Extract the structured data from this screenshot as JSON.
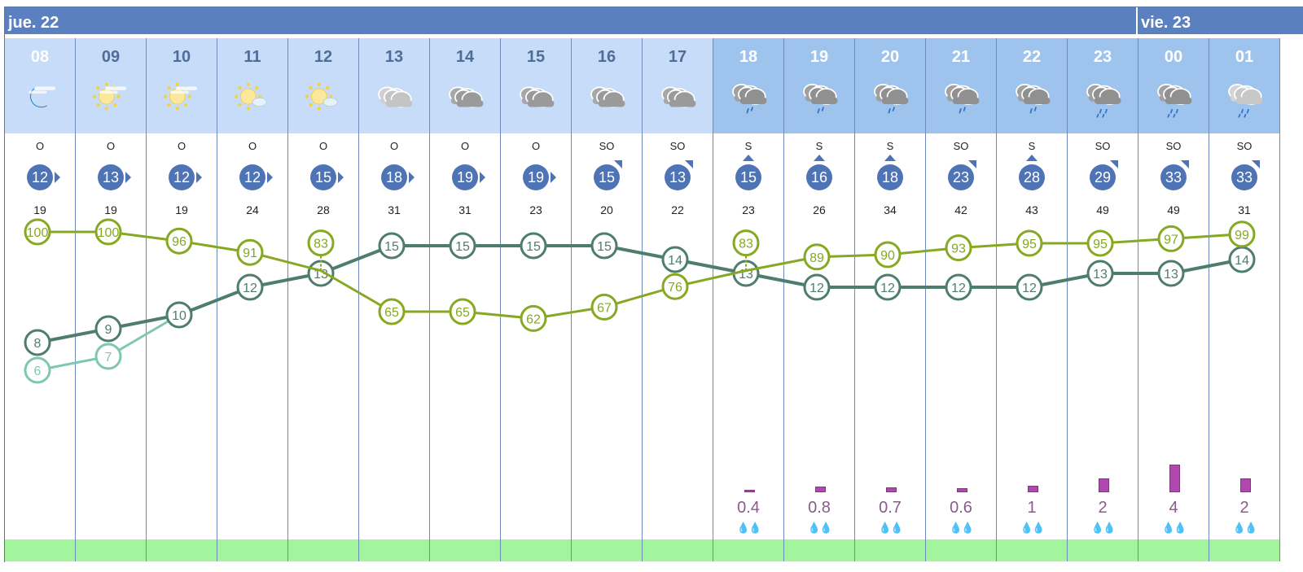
{
  "days": [
    {
      "label": "jue. 22"
    },
    {
      "label": "vie. 23"
    }
  ],
  "colors": {
    "day_bar": "#5b80bf",
    "hour_day": "#c6dcf8",
    "hour_evening": "#9ec3ec",
    "wind_circle": "#4f74b5",
    "temperature": "#4e7d6e",
    "humidity": "#86a822",
    "feels_like": "#7fc7b4",
    "precip": "#b048b0",
    "band": "#a3f59d"
  },
  "hours": [
    {
      "hour": "08",
      "icon": "moon-haze-icon",
      "dir": "O",
      "wind": "12",
      "gust": "19",
      "temp": 8,
      "feels": 6,
      "hum": 100,
      "precip": null
    },
    {
      "hour": "09",
      "icon": "sun-haze-icon",
      "dir": "O",
      "wind": "13",
      "gust": "19",
      "temp": 9,
      "feels": 7,
      "hum": 100,
      "precip": null
    },
    {
      "hour": "10",
      "icon": "sun-haze-icon",
      "dir": "O",
      "wind": "12",
      "gust": "19",
      "temp": 10,
      "feels": 10,
      "hum": 96,
      "precip": null
    },
    {
      "hour": "11",
      "icon": "sun-cloud-icon",
      "dir": "O",
      "wind": "12",
      "gust": "24",
      "temp": 12,
      "hum": 91,
      "precip": null
    },
    {
      "hour": "12",
      "icon": "sun-cloud-icon",
      "dir": "O",
      "wind": "15",
      "gust": "28",
      "temp": 13,
      "hum": 83,
      "precip": null
    },
    {
      "hour": "13",
      "icon": "cloudy-light-icon",
      "dir": "O",
      "wind": "18",
      "gust": "31",
      "temp": 15,
      "hum": 65,
      "precip": null
    },
    {
      "hour": "14",
      "icon": "cloudy-icon",
      "dir": "O",
      "wind": "19",
      "gust": "31",
      "temp": 15,
      "hum": 65,
      "precip": null
    },
    {
      "hour": "15",
      "icon": "cloudy-icon",
      "dir": "O",
      "wind": "19",
      "gust": "23",
      "temp": 15,
      "hum": 62,
      "precip": null
    },
    {
      "hour": "16",
      "icon": "cloudy-icon",
      "dir": "SO",
      "wind": "15",
      "gust": "20",
      "temp": 15,
      "hum": 67,
      "precip": null
    },
    {
      "hour": "17",
      "icon": "cloudy-icon",
      "dir": "SO",
      "wind": "13",
      "gust": "22",
      "temp": 14,
      "hum": 76,
      "precip": null
    },
    {
      "hour": "18",
      "icon": "rain-icon",
      "dir": "S",
      "wind": "15",
      "gust": "23",
      "temp": 13,
      "hum": 83,
      "precip": "0.4"
    },
    {
      "hour": "19",
      "icon": "rain-icon",
      "dir": "S",
      "wind": "16",
      "gust": "26",
      "temp": 12,
      "hum": 89,
      "precip": "0.8"
    },
    {
      "hour": "20",
      "icon": "rain-icon",
      "dir": "S",
      "wind": "18",
      "gust": "34",
      "temp": 12,
      "hum": 90,
      "precip": "0.7"
    },
    {
      "hour": "21",
      "icon": "rain-icon",
      "dir": "SO",
      "wind": "23",
      "gust": "42",
      "temp": 12,
      "hum": 93,
      "precip": "0.6"
    },
    {
      "hour": "22",
      "icon": "rain-icon",
      "dir": "S",
      "wind": "28",
      "gust": "43",
      "temp": 12,
      "hum": 95,
      "precip": "1"
    },
    {
      "hour": "23",
      "icon": "heavy-rain-icon",
      "dir": "SO",
      "wind": "29",
      "gust": "49",
      "temp": 13,
      "hum": 95,
      "precip": "2"
    },
    {
      "hour": "00",
      "icon": "heavy-rain-icon",
      "dir": "SO",
      "wind": "33",
      "gust": "49",
      "temp": 13,
      "hum": 97,
      "precip": "4"
    },
    {
      "hour": "01",
      "icon": "light-rain-icon",
      "dir": "SO",
      "wind": "33",
      "gust": "31",
      "temp": 14,
      "hum": 99,
      "precip": "2"
    }
  ]
}
